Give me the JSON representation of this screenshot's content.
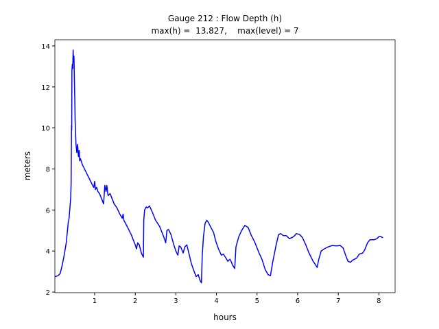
{
  "chart_data": {
    "type": "line",
    "title": "Gauge 212 : Flow Depth (h)",
    "subtitle": "max(h) =  13.827,    max(level) = 7",
    "x_label": "hours",
    "y_label": "meters",
    "color": "#0000ff",
    "xlim": [
      0.02,
      8.4
    ],
    "ylim": [
      1.97,
      14.3
    ],
    "xticks": [
      1,
      2,
      3,
      4,
      5,
      6,
      7,
      8
    ],
    "yticks": [
      2,
      4,
      6,
      8,
      10,
      12,
      14
    ],
    "x": [
      0.02,
      0.1,
      0.15,
      0.2,
      0.25,
      0.3,
      0.33,
      0.35,
      0.37,
      0.39,
      0.41,
      0.42,
      0.43,
      0.435,
      0.44,
      0.45,
      0.46,
      0.47,
      0.48,
      0.49,
      0.5,
      0.51,
      0.52,
      0.54,
      0.56,
      0.58,
      0.6,
      0.62,
      0.63,
      0.65,
      0.7,
      0.75,
      0.8,
      0.85,
      0.9,
      0.95,
      0.98,
      1.0,
      1.02,
      1.05,
      1.08,
      1.12,
      1.18,
      1.22,
      1.25,
      1.28,
      1.3,
      1.33,
      1.38,
      1.42,
      1.48,
      1.55,
      1.62,
      1.68,
      1.7,
      1.72,
      1.8,
      1.9,
      2.0,
      2.03,
      2.06,
      2.1,
      2.15,
      2.2,
      2.21,
      2.23,
      2.27,
      2.3,
      2.35,
      2.42,
      2.5,
      2.6,
      2.7,
      2.75,
      2.78,
      2.82,
      2.88,
      2.95,
      3.0,
      3.05,
      3.08,
      3.12,
      3.18,
      3.22,
      3.27,
      3.32,
      3.38,
      3.45,
      3.5,
      3.55,
      3.6,
      3.63,
      3.65,
      3.68,
      3.72,
      3.76,
      3.8,
      3.85,
      3.93,
      3.98,
      4.05,
      4.12,
      4.17,
      4.22,
      4.28,
      4.33,
      4.36,
      4.4,
      4.45,
      4.48,
      4.55,
      4.62,
      4.7,
      4.78,
      4.85,
      4.95,
      5.05,
      5.12,
      5.2,
      5.27,
      5.33,
      5.38,
      5.42,
      5.47,
      5.53,
      5.58,
      5.65,
      5.72,
      5.8,
      5.9,
      5.97,
      6.05,
      6.12,
      6.2,
      6.28,
      6.38,
      6.45,
      6.48,
      6.52,
      6.58,
      6.65,
      6.75,
      6.85,
      6.95,
      7.05,
      7.12,
      7.18,
      7.24,
      7.3,
      7.35,
      7.45,
      7.52,
      7.6,
      7.65,
      7.72,
      7.78,
      7.88,
      7.95,
      8.0,
      8.05,
      8.1
    ],
    "values": [
      2.75,
      2.8,
      2.9,
      3.3,
      3.8,
      4.4,
      5.0,
      5.4,
      5.6,
      6.1,
      6.6,
      7.3,
      10.1,
      9.9,
      12.8,
      13.1,
      12.9,
      13.8,
      13.2,
      13.5,
      12.4,
      11.5,
      10.3,
      9.2,
      8.8,
      9.2,
      8.6,
      8.9,
      8.4,
      8.5,
      8.2,
      8.0,
      7.8,
      7.6,
      7.4,
      7.2,
      7.1,
      7.4,
      7.0,
      7.1,
      6.9,
      6.8,
      6.5,
      6.3,
      7.2,
      6.9,
      7.2,
      6.7,
      6.8,
      6.6,
      6.3,
      6.1,
      5.8,
      5.6,
      5.8,
      5.5,
      5.2,
      4.8,
      4.3,
      4.1,
      4.4,
      4.3,
      3.9,
      3.7,
      5.5,
      6.0,
      6.15,
      6.1,
      6.2,
      5.9,
      5.5,
      5.2,
      4.7,
      4.4,
      5.0,
      5.05,
      4.8,
      4.3,
      4.0,
      3.8,
      4.25,
      4.2,
      3.9,
      4.2,
      4.3,
      3.9,
      3.4,
      3.0,
      2.75,
      2.85,
      2.55,
      2.45,
      3.8,
      4.7,
      5.35,
      5.5,
      5.4,
      5.2,
      4.9,
      4.5,
      4.1,
      3.8,
      3.85,
      3.7,
      3.5,
      3.6,
      3.5,
      3.3,
      3.15,
      4.2,
      4.7,
      5.0,
      5.25,
      5.15,
      4.8,
      4.4,
      3.9,
      3.6,
      3.1,
      2.85,
      2.8,
      3.4,
      3.8,
      4.3,
      4.8,
      4.85,
      4.75,
      4.75,
      4.6,
      4.7,
      4.85,
      4.8,
      4.65,
      4.3,
      3.9,
      3.5,
      3.3,
      3.2,
      3.6,
      4.0,
      4.1,
      4.2,
      4.27,
      4.25,
      4.27,
      4.15,
      3.8,
      3.5,
      3.45,
      3.55,
      3.65,
      3.85,
      3.9,
      4.05,
      4.4,
      4.55,
      4.55,
      4.6,
      4.7,
      4.7,
      4.65
    ]
  }
}
